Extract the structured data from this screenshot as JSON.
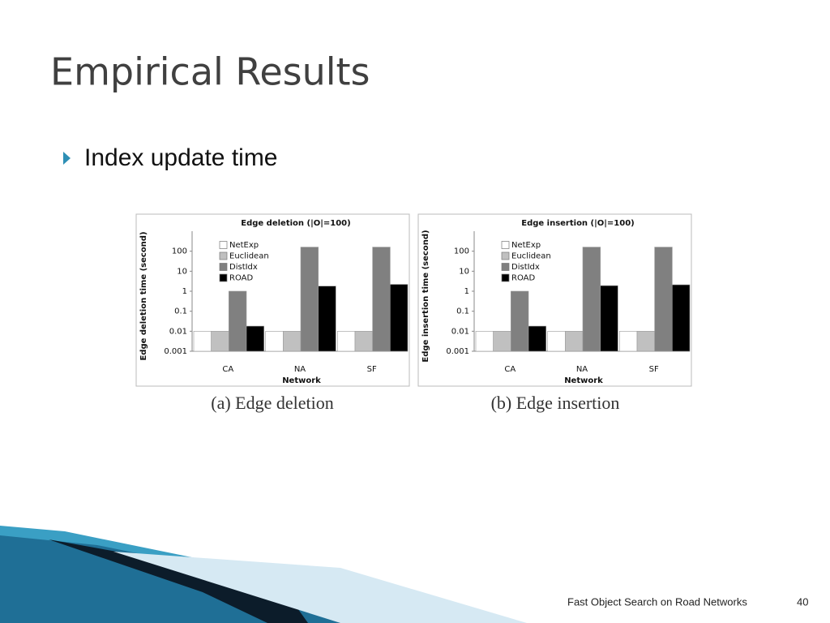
{
  "title": "Empirical Results",
  "bullet": "Index update time",
  "captions": [
    "(a) Edge deletion",
    "(b) Edge insertion"
  ],
  "footer": "Fast Object Search on Road Networks",
  "page_number": "40",
  "chart_data": [
    {
      "type": "bar",
      "title": "Edge deletion (|O|=100)",
      "y_label": "Edge deletion time (second)",
      "x_label": "Network",
      "categories": [
        "CA",
        "NA",
        "SF"
      ],
      "series": [
        {
          "name": "NetExp",
          "color": "#ffffff",
          "values": [
            0.01,
            0.01,
            0.01
          ]
        },
        {
          "name": "Euclidean",
          "color": "#c0c0c0",
          "values": [
            0.01,
            0.01,
            0.01
          ]
        },
        {
          "name": "DistIdx",
          "color": "#808080",
          "values": [
            1,
            160,
            160
          ]
        },
        {
          "name": "ROAD",
          "color": "#000000",
          "values": [
            0.018,
            1.8,
            2.2
          ]
        }
      ],
      "ylim": [
        0.001,
        1000
      ],
      "yticks": [
        0.001,
        0.01,
        0.1,
        1,
        10,
        100
      ],
      "log_scale": true,
      "legend": "upper left"
    },
    {
      "type": "bar",
      "title": "Edge insertion (|O|=100)",
      "y_label": "Edge insertion time (second)",
      "x_label": "Network",
      "categories": [
        "CA",
        "NA",
        "SF"
      ],
      "series": [
        {
          "name": "NetExp",
          "color": "#ffffff",
          "values": [
            0.01,
            0.01,
            0.01
          ]
        },
        {
          "name": "Euclidean",
          "color": "#c0c0c0",
          "values": [
            0.01,
            0.01,
            0.01
          ]
        },
        {
          "name": "DistIdx",
          "color": "#808080",
          "values": [
            1,
            160,
            160
          ]
        },
        {
          "name": "ROAD",
          "color": "#000000",
          "values": [
            0.018,
            1.9,
            2.1
          ]
        }
      ],
      "ylim": [
        0.001,
        1000
      ],
      "yticks": [
        0.001,
        0.01,
        0.1,
        1,
        10,
        100
      ],
      "log_scale": true,
      "legend": "upper left"
    }
  ]
}
